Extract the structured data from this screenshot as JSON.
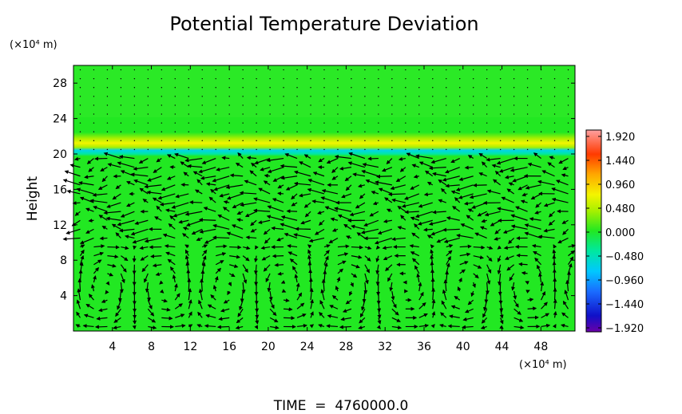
{
  "chart_data": {
    "type": "heatmap",
    "title": "Potential Temperature Deviation",
    "ylabel": "Height",
    "y_unit": "(×10⁴ m)",
    "x_unit": "(×10⁴ m)",
    "x_ticks": [
      4,
      8,
      12,
      16,
      20,
      24,
      28,
      32,
      36,
      40,
      44,
      48
    ],
    "y_ticks": [
      4,
      8,
      12,
      16,
      20,
      24,
      28
    ],
    "xlim": [
      0,
      51.5
    ],
    "ylim": [
      0,
      30
    ],
    "colorbar": {
      "ticks": [
        "1.920",
        "1.440",
        "0.960",
        "0.480",
        "0.000",
        "−0.480",
        "−0.960",
        "−1.440",
        "−1.920"
      ],
      "range": [
        -1.92,
        1.92
      ]
    },
    "background_value": 0.0,
    "features": [
      {
        "name": "warm band",
        "y_center": 21.5,
        "value": 0.7
      },
      {
        "name": "cold band",
        "y_center": 20.6,
        "value": -0.55
      }
    ],
    "overlay": "wind vector field",
    "footer": "TIME  =  4760000.0"
  },
  "colors": {
    "background_field": "#22e822",
    "warm": "#f4f400",
    "cold": "#00d4e8"
  }
}
